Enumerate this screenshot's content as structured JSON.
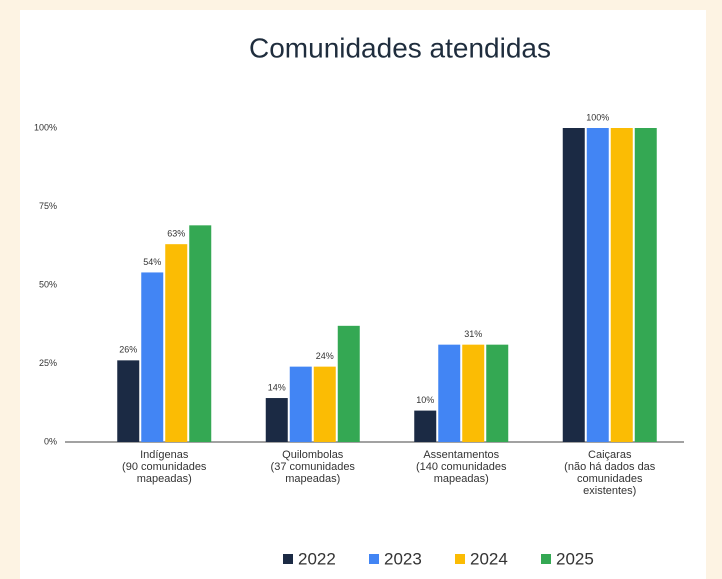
{
  "chart_data": {
    "type": "bar",
    "title": "Comunidades atendidas",
    "categories": [
      [
        "Indígenas",
        "(90 comunidades",
        "mapeadas)"
      ],
      [
        "Quilombolas",
        "(37 comunidades",
        "mapeadas)"
      ],
      [
        "Assentamentos",
        "(140 comunidades",
        "mapeadas)"
      ],
      [
        "Caiçaras",
        "(não há dados das",
        "comunidades",
        "existentes)"
      ]
    ],
    "series": [
      {
        "name": "2022",
        "color": "#1b2a44",
        "values": [
          26,
          14,
          10,
          100
        ],
        "value_labels": [
          "26%",
          "14%",
          "10%",
          null
        ]
      },
      {
        "name": "2023",
        "color": "#4285f4",
        "values": [
          54,
          24,
          31,
          100
        ],
        "value_labels": [
          "54%",
          null,
          null,
          "100%"
        ]
      },
      {
        "name": "2024",
        "color": "#fbbc04",
        "values": [
          63,
          24,
          31,
          100
        ],
        "value_labels": [
          "63%",
          "24%",
          "31%",
          null
        ]
      },
      {
        "name": "2025",
        "color": "#34a853",
        "values": [
          69,
          37,
          31,
          100
        ],
        "value_labels": [
          null,
          null,
          null,
          null
        ]
      }
    ],
    "ylim": [
      0,
      100
    ],
    "yticks": [
      {
        "value": 0,
        "label": "0%"
      },
      {
        "value": 25,
        "label": "25%"
      },
      {
        "value": 50,
        "label": "50%"
      },
      {
        "value": 75,
        "label": "75%"
      },
      {
        "value": 100,
        "label": "100%"
      }
    ],
    "grid": false,
    "legend": "bottom"
  }
}
